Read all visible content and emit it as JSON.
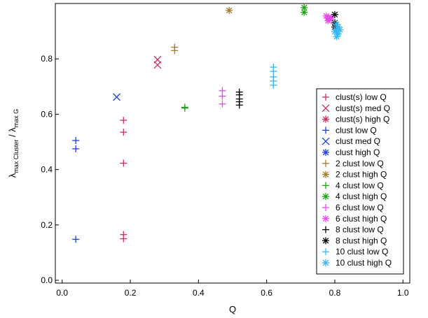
{
  "chart_data": {
    "type": "scatter",
    "xlabel": "Q",
    "ylabel": {
      "lambda1": "λ",
      "sub1": "max Cluster",
      "sep": " / ",
      "lambda2": "λ",
      "sub2": "max G"
    },
    "xlim": [
      -0.02,
      1.02
    ],
    "ylim": [
      -0.01,
      1.0
    ],
    "xticks": [
      {
        "value": 0.0,
        "label": "0.0"
      },
      {
        "value": 0.2,
        "label": "0.2"
      },
      {
        "value": 0.4,
        "label": "0.4"
      },
      {
        "value": 0.6,
        "label": "0.6"
      },
      {
        "value": 0.8,
        "label": "0.8"
      },
      {
        "value": 1.0,
        "label": "1.0"
      }
    ],
    "yticks": [
      {
        "value": 0.0,
        "label": "0.0"
      },
      {
        "value": 0.2,
        "label": "0.2"
      },
      {
        "value": 0.4,
        "label": "0.4"
      },
      {
        "value": 0.6,
        "label": "0.6"
      },
      {
        "value": 0.8,
        "label": "0.8"
      }
    ],
    "grid": false,
    "legend_position": "right",
    "series": [
      {
        "name": "clust(s) low Q",
        "marker": "plus",
        "color": "#c8325a",
        "points": [
          [
            0.18,
            0.578
          ],
          [
            0.18,
            0.535
          ],
          [
            0.18,
            0.423
          ],
          [
            0.18,
            0.165
          ],
          [
            0.18,
            0.15
          ]
        ]
      },
      {
        "name": "clust(s) med Q",
        "marker": "x",
        "color": "#c8325a",
        "points": [
          [
            0.28,
            0.797
          ],
          [
            0.28,
            0.778
          ]
        ]
      },
      {
        "name": "clust(s) high Q",
        "marker": "star",
        "color": "#c8325a",
        "points": []
      },
      {
        "name": "clust low Q",
        "marker": "plus",
        "color": "#1f3fd6",
        "points": [
          [
            0.04,
            0.505
          ],
          [
            0.04,
            0.475
          ],
          [
            0.04,
            0.148
          ]
        ]
      },
      {
        "name": "clust med Q",
        "marker": "x",
        "color": "#1f3fd6",
        "points": [
          [
            0.16,
            0.662
          ]
        ]
      },
      {
        "name": "clust high Q",
        "marker": "star",
        "color": "#1f3fd6",
        "points": []
      },
      {
        "name": "2 clust low Q",
        "marker": "plus",
        "color": "#a8782e",
        "points": [
          [
            0.33,
            0.842
          ],
          [
            0.33,
            0.83
          ]
        ]
      },
      {
        "name": "2 clust high Q",
        "marker": "star",
        "color": "#a8782e",
        "points": [
          [
            0.49,
            0.975
          ]
        ]
      },
      {
        "name": "4 clust low Q",
        "marker": "plus",
        "color": "#17a317",
        "points": [
          [
            0.36,
            0.625
          ],
          [
            0.36,
            0.622
          ]
        ]
      },
      {
        "name": "4 clust high Q",
        "marker": "star",
        "color": "#17a317",
        "points": [
          [
            0.71,
            0.985
          ],
          [
            0.71,
            0.968
          ]
        ]
      },
      {
        "name": "6 clust low Q",
        "marker": "plus",
        "color": "#ea48ea",
        "points": [
          [
            0.47,
            0.685
          ],
          [
            0.47,
            0.665
          ],
          [
            0.47,
            0.637
          ]
        ]
      },
      {
        "name": "6 clust high Q",
        "marker": "star",
        "color": "#ea48ea",
        "points": [
          [
            0.775,
            0.955
          ],
          [
            0.78,
            0.948
          ],
          [
            0.785,
            0.942
          ],
          [
            0.79,
            0.95
          ],
          [
            0.78,
            0.938
          ]
        ]
      },
      {
        "name": "8 clust low Q",
        "marker": "plus",
        "color": "#000000",
        "points": [
          [
            0.52,
            0.68
          ],
          [
            0.52,
            0.67
          ],
          [
            0.52,
            0.655
          ],
          [
            0.52,
            0.645
          ],
          [
            0.52,
            0.633
          ]
        ]
      },
      {
        "name": "8 clust high Q",
        "marker": "star",
        "color": "#000000",
        "points": [
          [
            0.8,
            0.96
          ],
          [
            0.8,
            0.93
          ],
          [
            0.8,
            0.915
          ]
        ]
      },
      {
        "name": "10 clust low Q",
        "marker": "plus",
        "color": "#35b7ee",
        "points": [
          [
            0.62,
            0.77
          ],
          [
            0.62,
            0.755
          ],
          [
            0.62,
            0.735
          ],
          [
            0.62,
            0.72
          ],
          [
            0.62,
            0.705
          ]
        ]
      },
      {
        "name": "10 clust high Q",
        "marker": "star",
        "color": "#35b7ee",
        "points": [
          [
            0.805,
            0.925
          ],
          [
            0.81,
            0.915
          ],
          [
            0.805,
            0.905
          ],
          [
            0.8,
            0.898
          ],
          [
            0.81,
            0.89
          ],
          [
            0.805,
            0.88
          ],
          [
            0.815,
            0.905
          ]
        ]
      }
    ]
  }
}
